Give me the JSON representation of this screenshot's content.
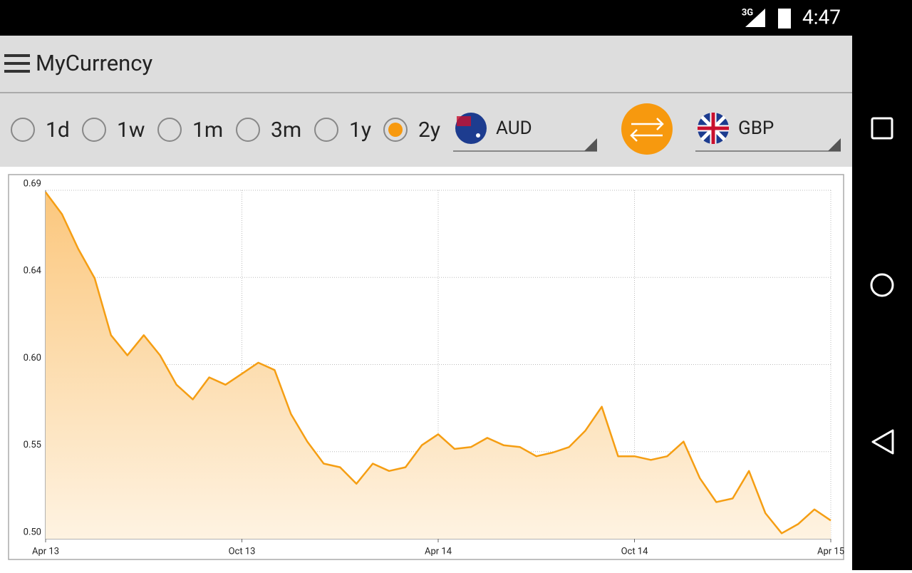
{
  "status_bar": {
    "network": "3G",
    "time": "4:47"
  },
  "app_bar": {
    "title": "MyCurrency"
  },
  "controls": {
    "periods": [
      "1d",
      "1w",
      "1m",
      "3m",
      "1y",
      "2y"
    ],
    "selected_period": "2y",
    "from_currency": "AUD",
    "to_currency": "GBP"
  },
  "chart_data": {
    "type": "line",
    "series": [
      {
        "color": "#f59e13",
        "values": [
          0.689,
          0.677,
          0.658,
          0.642,
          0.611,
          0.6,
          0.611,
          0.6,
          0.584,
          0.576,
          0.588,
          0.584,
          0.59,
          0.596,
          0.592,
          0.568,
          0.553,
          0.541,
          0.539,
          0.53,
          0.541,
          0.537,
          0.539,
          0.551,
          0.557,
          0.549,
          0.55,
          0.555,
          0.551,
          0.55,
          0.545,
          0.547,
          0.55,
          0.559,
          0.572,
          0.545,
          0.545,
          0.543,
          0.545,
          0.553,
          0.533,
          0.52,
          0.522,
          0.537,
          0.514,
          0.503,
          0.508,
          0.516,
          0.51
        ]
      }
    ],
    "xlim": [
      0,
      48
    ],
    "xticks": [
      {
        "value": 0,
        "label": "Apr 13"
      },
      {
        "value": 12,
        "label": "Oct 13"
      },
      {
        "value": 24,
        "label": "Apr 14"
      },
      {
        "value": 36,
        "label": "Oct 14"
      },
      {
        "value": 48,
        "label": "Apr 15"
      }
    ],
    "ylim": [
      0.5,
      0.69
    ],
    "yticks": [
      {
        "value": 0.5,
        "label": "0.50"
      },
      {
        "value": 0.5475,
        "label": "0.55"
      },
      {
        "value": 0.595,
        "label": "0.60"
      },
      {
        "value": 0.6425,
        "label": "0.64"
      },
      0.69
    ],
    "grid": true,
    "area_fill": true
  }
}
